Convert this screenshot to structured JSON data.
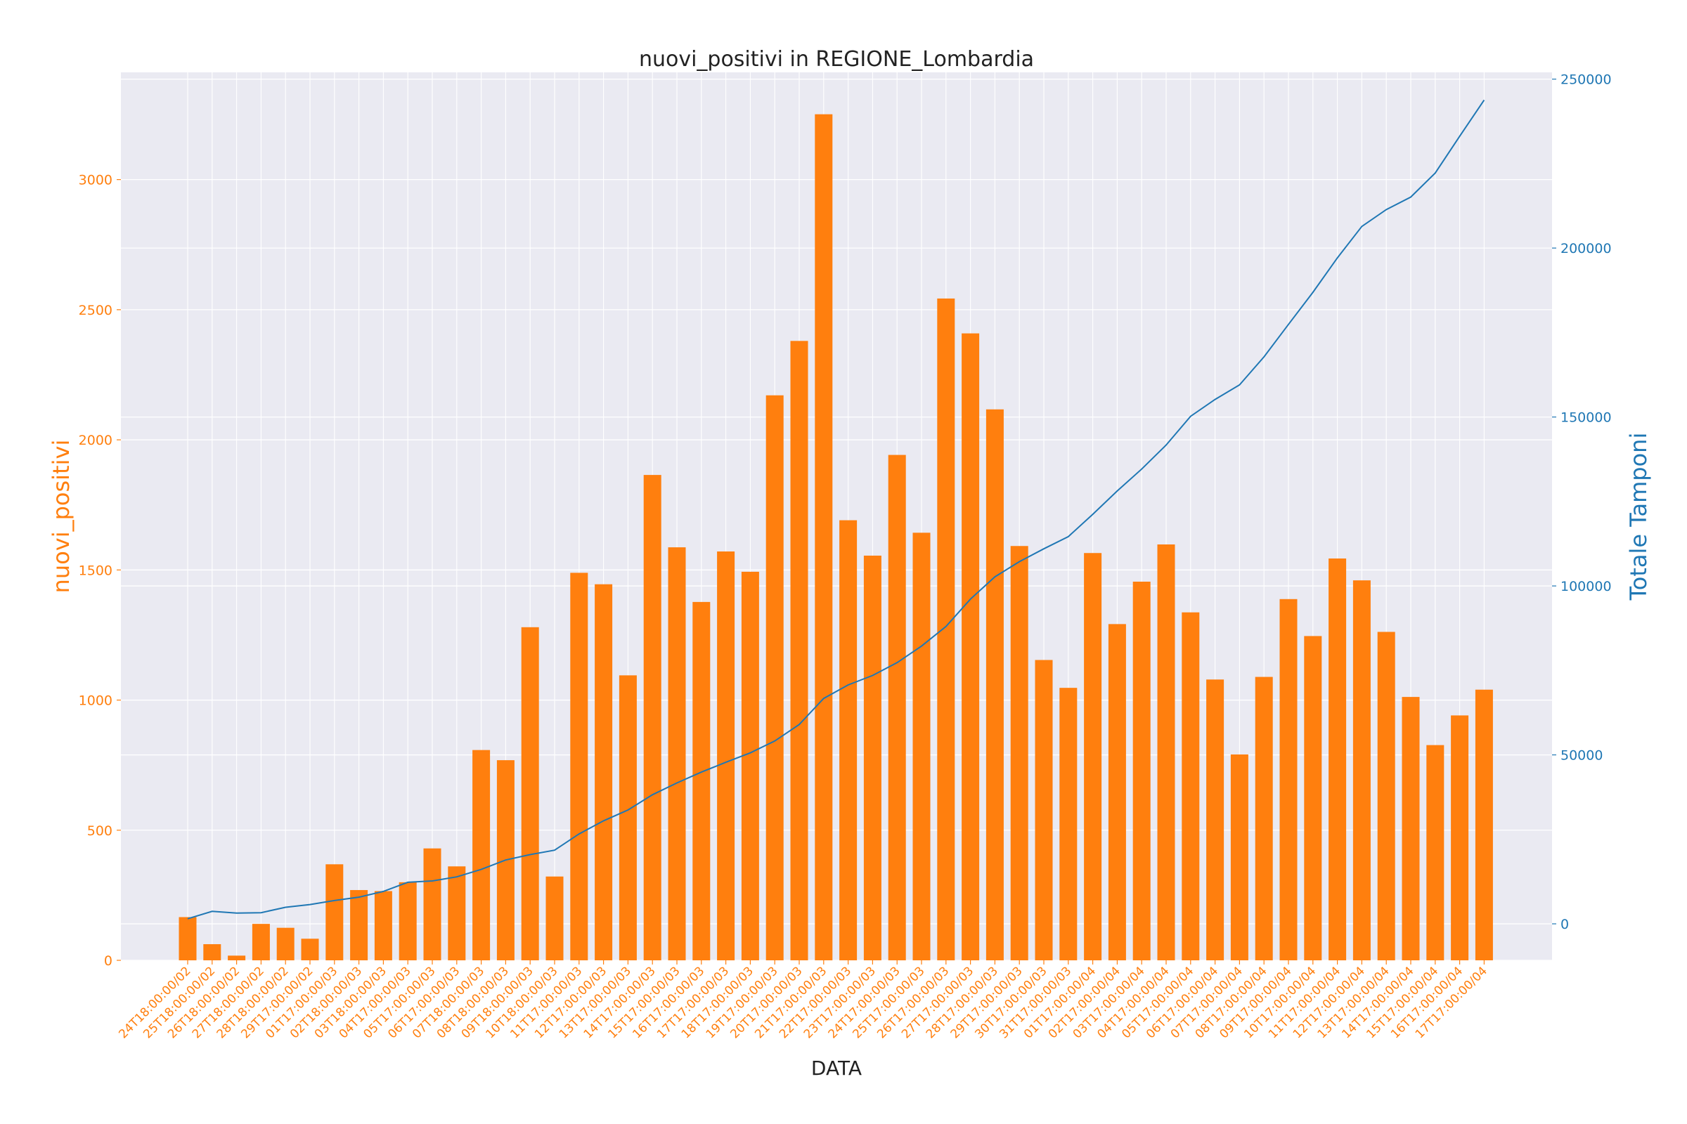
{
  "chart_data": {
    "type": "bar",
    "title": "nuovi_positivi in REGIONE_Lombardia",
    "xlabel": "DATA",
    "ylabel_left": "nuovi_positivi",
    "ylabel_right": "Totale Tamponi",
    "ylim_left": [
      0,
      3412
    ],
    "ylim_right": [
      -10800,
      252000
    ],
    "yticks_left": [
      0,
      500,
      1000,
      1500,
      2000,
      2500,
      3000
    ],
    "yticks_right": [
      0,
      50000,
      100000,
      150000,
      200000,
      250000
    ],
    "grid": true,
    "categories": [
      "24T18:00:00/02",
      "25T18:00:00/02",
      "26T18:00:00/02",
      "27T18:00:00/02",
      "28T18:00:00/02",
      "29T17:00:00/02",
      "01T17:00:00/03",
      "02T18:00:00/03",
      "03T18:00:00/03",
      "04T17:00:00/03",
      "05T17:00:00/03",
      "06T17:00:00/03",
      "07T18:00:00/03",
      "08T18:00:00/03",
      "09T18:00:00/03",
      "10T18:00:00/03",
      "11T17:00:00/03",
      "12T17:00:00/03",
      "13T17:00:00/03",
      "14T17:00:00/03",
      "15T17:00:00/03",
      "16T17:00:00/03",
      "17T17:00:00/03",
      "18T17:00:00/03",
      "19T17:00:00/03",
      "20T17:00:00/03",
      "21T17:00:00/03",
      "22T17:00:00/03",
      "23T17:00:00/03",
      "24T17:00:00/03",
      "25T17:00:00/03",
      "26T17:00:00/03",
      "27T17:00:00/03",
      "28T17:00:00/03",
      "29T17:00:00/03",
      "30T17:00:00/03",
      "31T17:00:00/03",
      "01T17:00:00/04",
      "02T17:00:00/04",
      "03T17:00:00/04",
      "04T17:00:00/04",
      "05T17:00:00/04",
      "06T17:00:00/04",
      "07T17:00:00/04",
      "08T17:00:00/04",
      "09T17:00:00/04",
      "10T17:00:00/04",
      "11T17:00:00/04",
      "12T17:00:00/04",
      "13T17:00:00/04",
      "14T17:00:00/04",
      "15T17:00:00/04",
      "16T17:00:00/04",
      "17T17:00:00/04"
    ],
    "series": [
      {
        "type": "bar",
        "axis": "left",
        "color": "#ff7f0e",
        "values": [
          166,
          62,
          18,
          140,
          125,
          83,
          369,
          270,
          266,
          300,
          430,
          361,
          808,
          769,
          1280,
          322,
          1489,
          1445,
          1095,
          1865,
          1587,
          1377,
          1571,
          1493,
          2171,
          2380,
          3251,
          1691,
          1555,
          1942,
          1643,
          2543,
          2409,
          2117,
          1592,
          1154,
          1047,
          1565,
          1292,
          1455,
          1598,
          1337,
          1079,
          791,
          1089,
          1388,
          1246,
          1544,
          1460,
          1262,
          1012,
          827,
          941,
          1040
        ]
      },
      {
        "type": "line",
        "axis": "right",
        "color": "#1f77b4",
        "values": [
          1500,
          3700,
          3200,
          3300,
          4900,
          5700,
          6900,
          7900,
          9600,
          12300,
          12700,
          13900,
          16100,
          18900,
          20500,
          21800,
          26600,
          30500,
          33700,
          38200,
          41700,
          44900,
          47800,
          50600,
          54100,
          59000,
          66700,
          70700,
          73500,
          77300,
          82200,
          88000,
          96100,
          102700,
          107200,
          111000,
          114600,
          121200,
          128100,
          134600,
          141700,
          150200,
          155200,
          159500,
          167800,
          177400,
          186900,
          197100,
          206400,
          211400,
          215100,
          222200,
          233100,
          243800
        ]
      }
    ]
  }
}
